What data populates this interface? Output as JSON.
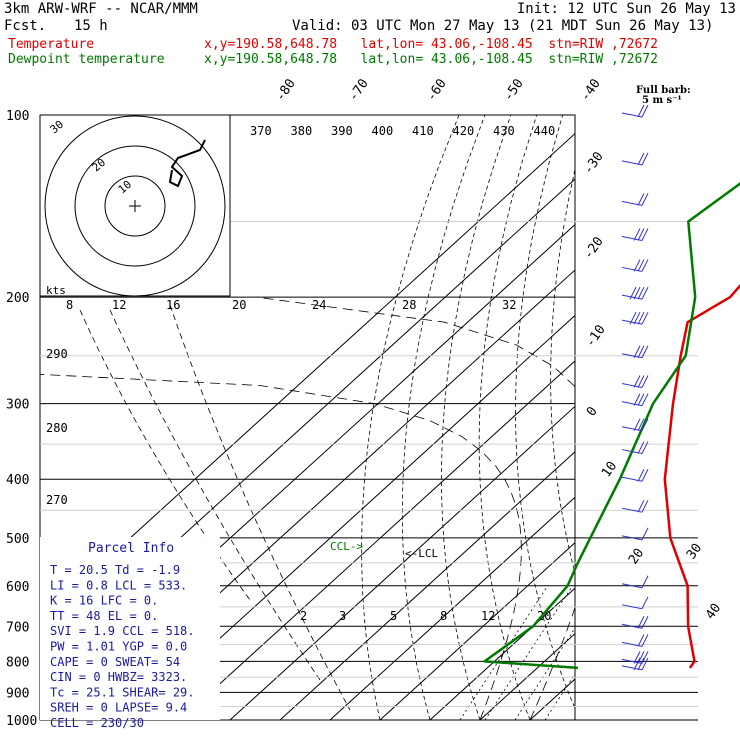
{
  "header": {
    "title": "3km ARW-WRF -- NCAR/MMM",
    "init": "Init: 12 UTC Sun 26 May 13",
    "fcst_label": "Fcst.",
    "fcst_value": "15 h",
    "valid": "Valid: 03 UTC Mon 27 May 13 (21 MDT Sun 26 May 13)",
    "temp_label": "Temperature",
    "temp_loc": "x,y=190.58,648.78   lat,lon= 43.06,-108.45  stn=RIW ,72672",
    "dew_label": "Dewpoint temperature",
    "dew_loc": "x,y=190.58,648.78   lat,lon= 43.06,-108.45  stn=RIW ,72672"
  },
  "colors": {
    "temperature": "#e00000",
    "dewpoint": "#007a00",
    "wind": "#3030d0",
    "grid": "#000000"
  },
  "chart_data": {
    "type": "line",
    "title": "3km ARW-WRF -- NCAR/MMM",
    "pressure_levels": [
      100,
      200,
      300,
      400,
      500,
      600,
      700,
      800,
      900,
      1000
    ],
    "ylim": [
      100,
      1000
    ],
    "skew_temperature_labels": [
      -80,
      -70,
      -60,
      -50,
      -40,
      -30,
      -20,
      -10,
      0,
      10,
      20,
      30,
      40
    ],
    "theta_labels": [
      370,
      380,
      390,
      400,
      410,
      420,
      430,
      440
    ],
    "theta_e_labels": [
      290,
      280,
      270
    ],
    "mixing_ratio_labels": [
      "2",
      "3",
      "5",
      "8",
      "12",
      "20"
    ],
    "series": [
      {
        "name": "Temperature",
        "pressure": [
          100,
          150,
          170,
          200,
          220,
          250,
          300,
          400,
          500,
          600,
          700,
          800,
          820
        ],
        "temp_c": [
          -57,
          -52,
          -55,
          -53,
          -56,
          -50,
          -41,
          -26,
          -12,
          2,
          11,
          20,
          20.5
        ]
      },
      {
        "name": "Dewpoint temperature",
        "pressure": [
          100,
          130,
          150,
          200,
          250,
          300,
          400,
          500,
          550,
          600,
          700,
          800,
          820
        ],
        "temp_c": [
          -76,
          -76,
          -78,
          -60,
          -49,
          -45,
          -35,
          -28,
          -25,
          -22,
          -20,
          -22,
          -1.9
        ]
      }
    ],
    "annotations": [
      "CCL->",
      "<-LCL"
    ]
  },
  "hodograph": {
    "units_label": "kts",
    "ring_labels": [
      "10",
      "20",
      "30"
    ],
    "speed_labels": [
      "8",
      "12",
      "16",
      "20",
      "24",
      "28",
      "32"
    ]
  },
  "barb_legend": {
    "label": "Full barb:",
    "value": "5 m s⁻¹"
  },
  "wind_barbs_side": [
    {
      "p": 100,
      "s": 10
    },
    {
      "p": 120,
      "s": 10
    },
    {
      "p": 140,
      "s": 10
    },
    {
      "p": 160,
      "s": 15
    },
    {
      "p": 180,
      "s": 15
    },
    {
      "p": 200,
      "s": 20
    },
    {
      "p": 220,
      "s": 20
    },
    {
      "p": 250,
      "s": 15
    },
    {
      "p": 280,
      "s": 15
    },
    {
      "p": 300,
      "s": 15
    },
    {
      "p": 330,
      "s": 15
    },
    {
      "p": 360,
      "s": 10
    },
    {
      "p": 400,
      "s": 10
    },
    {
      "p": 450,
      "s": 10
    },
    {
      "p": 500,
      "s": 5
    },
    {
      "p": 600,
      "s": 5
    },
    {
      "p": 650,
      "s": 5
    },
    {
      "p": 700,
      "s": 10
    },
    {
      "p": 750,
      "s": 10
    },
    {
      "p": 800,
      "s": 15
    },
    {
      "p": 820,
      "s": 15
    }
  ],
  "parcel_info": {
    "title": "Parcel Info",
    "rows": [
      "T  =   20.5  Td =  -1.9",
      "LI =    0.8  LCL =  533.",
      "K  =     16  LFC =    0.",
      "TT =     48  EL  =    0.",
      "SVI =   1.9  CCL =  518.",
      "PW =   1.01  YGP =   0.0",
      "CAPE =    0  SWEAT=   54",
      "CIN =     0  HWBZ= 3323.",
      "Tc  =  25.1  SHEAR=  29.",
      "SREH =    0  LAPSE=  9.4",
      "CELL = 230/30"
    ]
  }
}
